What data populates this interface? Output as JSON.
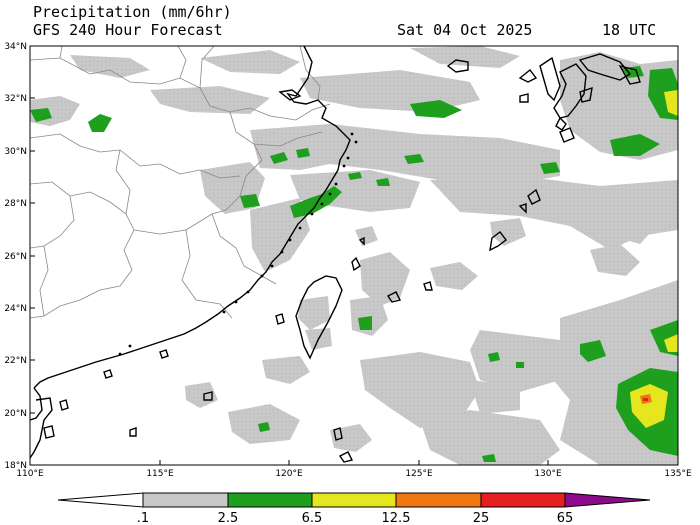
{
  "header": {
    "title_left": "Precipitation (mm/6hr)",
    "subtitle_left": "GFS 240 Hour Forecast",
    "valid_date": "Sat 04 Oct 2025",
    "valid_time": "18 UTC"
  },
  "axes": {
    "lat_labels": [
      "34°N",
      "32°N",
      "30°N",
      "28°N",
      "26°N",
      "24°N",
      "22°N",
      "20°N",
      "18°N"
    ],
    "lon_labels": [
      "110°E",
      "115°E",
      "120°E",
      "125°E",
      "130°E",
      "135°E"
    ]
  },
  "colorbar": {
    "labels": [
      ".1",
      "2.5",
      "6.5",
      "12.5",
      "25",
      "65"
    ],
    "colors": [
      "#ffffff",
      "#c8c8c8",
      "#1ea01e",
      "#e6e61e",
      "#f07814",
      "#e61e1e",
      "#8c0a8c"
    ]
  },
  "colors": {
    "light_rain": "#c8c8c8",
    "moderate_rain": "#1ea01e",
    "heavy_rain": "#e6e61e",
    "very_heavy_rain": "#f07814",
    "extreme_rain": "#e61e1e"
  }
}
